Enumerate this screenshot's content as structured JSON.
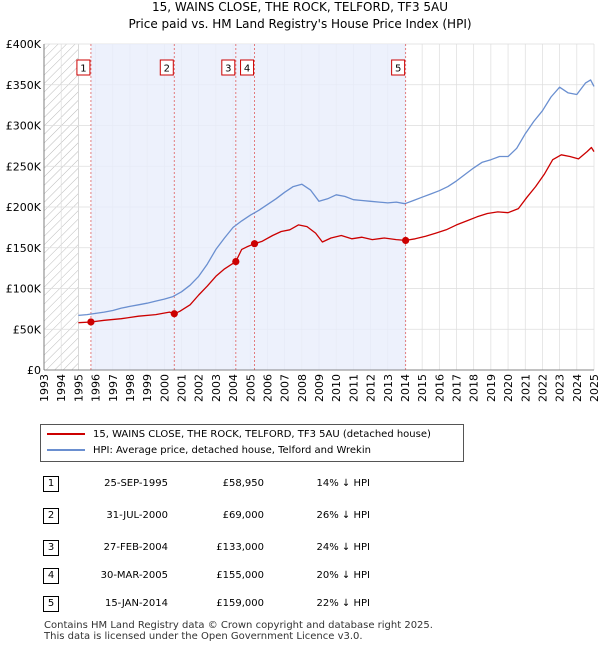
{
  "chart_data": {
    "type": "line",
    "title": "15, WAINS CLOSE, THE ROCK, TELFORD, TF3 5AU",
    "subtitle": "Price paid vs. HM Land Registry's House Price Index (HPI)",
    "xlabel": "",
    "ylabel": "",
    "xlim": [
      1993,
      2025
    ],
    "ylim": [
      0,
      400000
    ],
    "y_ticks": [
      {
        "value": 0,
        "label": "£0"
      },
      {
        "value": 50000,
        "label": "£50K"
      },
      {
        "value": 100000,
        "label": "£100K"
      },
      {
        "value": 150000,
        "label": "£150K"
      },
      {
        "value": 200000,
        "label": "£200K"
      },
      {
        "value": 250000,
        "label": "£250K"
      },
      {
        "value": 300000,
        "label": "£300K"
      },
      {
        "value": 350000,
        "label": "£350K"
      },
      {
        "value": 400000,
        "label": "£400K"
      }
    ],
    "x_ticks": [
      "1993",
      "1994",
      "1995",
      "1996",
      "1997",
      "1998",
      "1999",
      "2000",
      "2001",
      "2002",
      "2003",
      "2004",
      "2005",
      "2006",
      "2007",
      "2008",
      "2009",
      "2010",
      "2011",
      "2012",
      "2013",
      "2014",
      "2015",
      "2016",
      "2017",
      "2018",
      "2019",
      "2020",
      "2021",
      "2022",
      "2023",
      "2024",
      "2025"
    ],
    "hatched_until": 1995.0,
    "series": [
      {
        "name": "15, WAINS CLOSE, THE ROCK, TELFORD, TF3 5AU (detached house)",
        "color": "#cc0000",
        "points": [
          [
            1995.0,
            58000
          ],
          [
            1995.73,
            58950
          ],
          [
            1996.5,
            61000
          ],
          [
            1997.5,
            63000
          ],
          [
            1998.5,
            66000
          ],
          [
            1999.5,
            68000
          ],
          [
            2000.3,
            71000
          ],
          [
            2000.58,
            69000
          ],
          [
            2000.9,
            72000
          ],
          [
            2001.5,
            80000
          ],
          [
            2002.0,
            92000
          ],
          [
            2002.5,
            103000
          ],
          [
            2003.0,
            115000
          ],
          [
            2003.5,
            124000
          ],
          [
            2004.16,
            133000
          ],
          [
            2004.5,
            148000
          ],
          [
            2004.8,
            151000
          ],
          [
            2005.25,
            155000
          ],
          [
            2005.7,
            158000
          ],
          [
            2006.3,
            165000
          ],
          [
            2006.8,
            170000
          ],
          [
            2007.3,
            172000
          ],
          [
            2007.8,
            178000
          ],
          [
            2008.3,
            176000
          ],
          [
            2008.8,
            168000
          ],
          [
            2009.2,
            157000
          ],
          [
            2009.7,
            162000
          ],
          [
            2010.3,
            165000
          ],
          [
            2010.9,
            161000
          ],
          [
            2011.5,
            163000
          ],
          [
            2012.1,
            160000
          ],
          [
            2012.8,
            162000
          ],
          [
            2013.5,
            160000
          ],
          [
            2014.04,
            159000
          ],
          [
            2014.6,
            161000
          ],
          [
            2015.2,
            164000
          ],
          [
            2015.8,
            168000
          ],
          [
            2016.4,
            172000
          ],
          [
            2017.0,
            178000
          ],
          [
            2017.6,
            183000
          ],
          [
            2018.2,
            188000
          ],
          [
            2018.8,
            192000
          ],
          [
            2019.4,
            194000
          ],
          [
            2020.0,
            193000
          ],
          [
            2020.6,
            198000
          ],
          [
            2021.1,
            212000
          ],
          [
            2021.6,
            225000
          ],
          [
            2022.1,
            240000
          ],
          [
            2022.6,
            258000
          ],
          [
            2023.1,
            264000
          ],
          [
            2023.6,
            262000
          ],
          [
            2024.1,
            259000
          ],
          [
            2024.6,
            268000
          ],
          [
            2024.85,
            273000
          ],
          [
            2025.0,
            268000
          ]
        ]
      },
      {
        "name": "HPI: Average price, detached house, Telford and Wrekin",
        "color": "#6a8fd0",
        "points": [
          [
            1995.0,
            67000
          ],
          [
            1995.5,
            68000
          ],
          [
            1996.0,
            69500
          ],
          [
            1996.5,
            71000
          ],
          [
            1997.0,
            73000
          ],
          [
            1997.5,
            76000
          ],
          [
            1998.0,
            78000
          ],
          [
            1998.5,
            80000
          ],
          [
            1999.0,
            82000
          ],
          [
            1999.5,
            84500
          ],
          [
            2000.0,
            87000
          ],
          [
            2000.5,
            90000
          ],
          [
            2001.0,
            96000
          ],
          [
            2001.5,
            104000
          ],
          [
            2002.0,
            115000
          ],
          [
            2002.5,
            130000
          ],
          [
            2003.0,
            148000
          ],
          [
            2003.5,
            162000
          ],
          [
            2004.0,
            175000
          ],
          [
            2004.5,
            183000
          ],
          [
            2005.0,
            190000
          ],
          [
            2005.5,
            196000
          ],
          [
            2006.0,
            203000
          ],
          [
            2006.5,
            210000
          ],
          [
            2007.0,
            218000
          ],
          [
            2007.5,
            225000
          ],
          [
            2008.0,
            228000
          ],
          [
            2008.5,
            221000
          ],
          [
            2009.0,
            207000
          ],
          [
            2009.5,
            210000
          ],
          [
            2010.0,
            215000
          ],
          [
            2010.5,
            213000
          ],
          [
            2011.0,
            209000
          ],
          [
            2011.5,
            208000
          ],
          [
            2012.0,
            207000
          ],
          [
            2012.5,
            206000
          ],
          [
            2013.0,
            205000
          ],
          [
            2013.5,
            206000
          ],
          [
            2014.0,
            204000
          ],
          [
            2014.5,
            208000
          ],
          [
            2015.0,
            212000
          ],
          [
            2015.5,
            216000
          ],
          [
            2016.0,
            220000
          ],
          [
            2016.5,
            225000
          ],
          [
            2017.0,
            232000
          ],
          [
            2017.5,
            240000
          ],
          [
            2018.0,
            248000
          ],
          [
            2018.5,
            255000
          ],
          [
            2019.0,
            258000
          ],
          [
            2019.5,
            262000
          ],
          [
            2020.0,
            262000
          ],
          [
            2020.5,
            272000
          ],
          [
            2021.0,
            290000
          ],
          [
            2021.5,
            305000
          ],
          [
            2022.0,
            318000
          ],
          [
            2022.5,
            335000
          ],
          [
            2023.0,
            347000
          ],
          [
            2023.5,
            340000
          ],
          [
            2024.0,
            338000
          ],
          [
            2024.5,
            352000
          ],
          [
            2024.8,
            356000
          ],
          [
            2025.0,
            348000
          ]
        ]
      }
    ],
    "sale_markers": [
      {
        "label": "1",
        "x": 1995.73,
        "price": 58950
      },
      {
        "label": "2",
        "x": 2000.58,
        "price": 69000
      },
      {
        "label": "3",
        "x": 2004.16,
        "price": 133000
      },
      {
        "label": "4",
        "x": 2005.25,
        "price": 155000
      },
      {
        "label": "5",
        "x": 2014.04,
        "price": 159000
      }
    ]
  },
  "legend": {
    "property_label": "15, WAINS CLOSE, THE ROCK, TELFORD, TF3 5AU (detached house)",
    "hpi_label": "HPI: Average price, detached house, Telford and Wrekin",
    "property_color": "#cc0000",
    "hpi_color": "#6a8fd0"
  },
  "sales": [
    {
      "num": "1",
      "date": "25-SEP-1995",
      "price": "£58,950",
      "hpi": "14% ↓ HPI"
    },
    {
      "num": "2",
      "date": "31-JUL-2000",
      "price": "£69,000",
      "hpi": "26% ↓ HPI"
    },
    {
      "num": "3",
      "date": "27-FEB-2004",
      "price": "£133,000",
      "hpi": "24% ↓ HPI"
    },
    {
      "num": "4",
      "date": "30-MAR-2005",
      "price": "£155,000",
      "hpi": "20% ↓ HPI"
    },
    {
      "num": "5",
      "date": "15-JAN-2014",
      "price": "£159,000",
      "hpi": "22% ↓ HPI"
    }
  ],
  "footer": {
    "line1": "Contains HM Land Registry data © Crown copyright and database right 2025.",
    "line2": "This data is licensed under the Open Government Licence v3.0."
  }
}
